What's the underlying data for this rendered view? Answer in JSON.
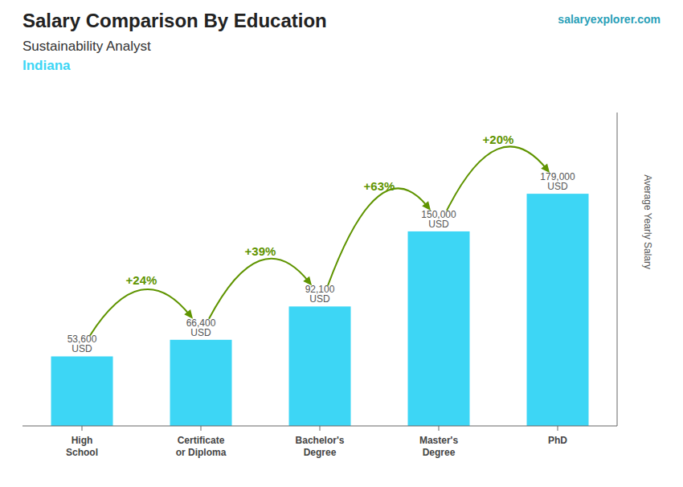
{
  "chart_data": {
    "type": "bar",
    "title": "Salary Comparison By Education",
    "subtitle": "Sustainability Analyst",
    "annotations": [
      {
        "text": "Indiana"
      },
      {
        "text": "salaryexplorer.com"
      },
      {
        "text": "+24%",
        "from": "High\nSchool",
        "to": "Certificate\nor Diploma"
      },
      {
        "text": "+39%",
        "from": "Certificate\nor Diploma",
        "to": "Bachelor's\nDegree"
      },
      {
        "text": "+63%",
        "from": "Bachelor's\nDegree",
        "to": "Master's\nDegree"
      },
      {
        "text": "+20%",
        "from": "Master's\nDegree",
        "to": "PhD"
      }
    ],
    "ylabel": "Average Yearly Salary",
    "categories": [
      "High\nSchool",
      "Certificate\nor Diploma",
      "Bachelor's\nDegree",
      "Master's\nDegree",
      "PhD"
    ],
    "values": [
      53600,
      66400,
      92100,
      150000,
      179000
    ],
    "value_labels": [
      "53,600 USD",
      "66,400 USD",
      "92,100 USD",
      "150,000 USD",
      "179,000 USD"
    ],
    "data_labels": true,
    "color": "#3dd6f5",
    "ylim": [
      0,
      241650
    ],
    "tick_labels": false
  }
}
